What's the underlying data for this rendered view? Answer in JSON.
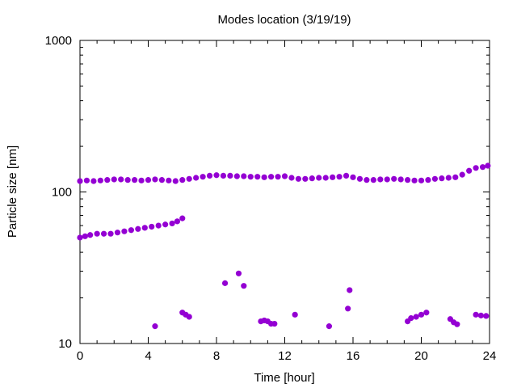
{
  "chart_data": {
    "type": "scatter",
    "title": "Modes location (3/19/19)",
    "xlabel": "Time [hour]",
    "ylabel": "Particle size [nm]",
    "xlim": [
      0,
      24
    ],
    "ylim": [
      10,
      1000
    ],
    "yscale": "log",
    "grid": false,
    "marker_color": "#9400d3",
    "x_ticks": [
      0,
      4,
      8,
      12,
      16,
      20,
      24
    ],
    "x_tick_labels": [
      "0",
      "4",
      "8",
      "12",
      "16",
      "20",
      "24"
    ],
    "y_ticks": [
      10,
      100,
      1000
    ],
    "y_tick_labels": [
      "10",
      "100",
      "1000"
    ],
    "series": [
      {
        "points": [
          [
            0.0,
            118
          ],
          [
            0.4,
            119
          ],
          [
            0.8,
            118
          ],
          [
            1.2,
            119
          ],
          [
            1.6,
            120
          ],
          [
            2.0,
            121
          ],
          [
            2.4,
            121
          ],
          [
            2.8,
            120
          ],
          [
            3.2,
            120
          ],
          [
            3.6,
            119
          ],
          [
            4.0,
            120
          ],
          [
            4.4,
            121
          ],
          [
            4.8,
            120
          ],
          [
            5.2,
            119
          ],
          [
            5.6,
            118
          ],
          [
            6.0,
            120
          ],
          [
            6.4,
            122
          ],
          [
            6.8,
            124
          ],
          [
            7.2,
            126
          ],
          [
            7.6,
            128
          ],
          [
            8.0,
            129
          ],
          [
            8.4,
            128
          ],
          [
            8.8,
            128
          ],
          [
            9.2,
            127
          ],
          [
            9.6,
            127
          ],
          [
            10.0,
            126
          ],
          [
            10.4,
            126
          ],
          [
            10.8,
            125
          ],
          [
            11.2,
            126
          ],
          [
            11.6,
            126
          ],
          [
            12.0,
            127
          ],
          [
            12.4,
            124
          ],
          [
            12.8,
            122
          ],
          [
            13.2,
            122
          ],
          [
            13.6,
            123
          ],
          [
            14.0,
            124
          ],
          [
            14.4,
            124
          ],
          [
            14.8,
            125
          ],
          [
            15.2,
            126
          ],
          [
            15.6,
            128
          ],
          [
            16.0,
            125
          ],
          [
            16.4,
            122
          ],
          [
            16.8,
            120
          ],
          [
            17.2,
            120
          ],
          [
            17.6,
            121
          ],
          [
            18.0,
            121
          ],
          [
            18.4,
            122
          ],
          [
            18.8,
            121
          ],
          [
            19.2,
            120
          ],
          [
            19.6,
            119
          ],
          [
            20.0,
            119
          ],
          [
            20.4,
            120
          ],
          [
            20.8,
            122
          ],
          [
            21.2,
            123
          ],
          [
            21.6,
            124
          ],
          [
            22.0,
            125
          ],
          [
            22.4,
            130
          ],
          [
            22.8,
            138
          ],
          [
            23.2,
            144
          ],
          [
            23.6,
            146
          ],
          [
            23.9,
            149
          ],
          [
            0.0,
            50
          ],
          [
            0.3,
            51
          ],
          [
            0.6,
            52
          ],
          [
            1.0,
            53
          ],
          [
            1.4,
            53
          ],
          [
            1.8,
            53
          ],
          [
            2.2,
            54
          ],
          [
            2.6,
            55
          ],
          [
            3.0,
            56
          ],
          [
            3.4,
            57
          ],
          [
            3.8,
            58
          ],
          [
            4.2,
            59
          ],
          [
            4.6,
            60
          ],
          [
            5.0,
            61
          ],
          [
            5.4,
            62
          ],
          [
            5.7,
            64
          ],
          [
            6.0,
            67
          ],
          [
            4.4,
            13
          ],
          [
            6.0,
            16
          ],
          [
            6.2,
            15.5
          ],
          [
            6.4,
            15
          ],
          [
            8.5,
            25
          ],
          [
            9.3,
            29
          ],
          [
            9.6,
            24
          ],
          [
            10.6,
            14
          ],
          [
            10.8,
            14.2
          ],
          [
            11.0,
            14
          ],
          [
            11.2,
            13.5
          ],
          [
            11.4,
            13.5
          ],
          [
            12.6,
            15.5
          ],
          [
            14.6,
            13
          ],
          [
            15.7,
            17
          ],
          [
            15.8,
            22.5
          ],
          [
            19.2,
            14
          ],
          [
            19.4,
            14.7
          ],
          [
            19.7,
            15
          ],
          [
            20.0,
            15.5
          ],
          [
            20.3,
            16
          ],
          [
            21.7,
            14.5
          ],
          [
            21.9,
            13.8
          ],
          [
            22.1,
            13.4
          ],
          [
            23.2,
            15.5
          ],
          [
            23.5,
            15.3
          ],
          [
            23.8,
            15.2
          ]
        ]
      }
    ]
  }
}
